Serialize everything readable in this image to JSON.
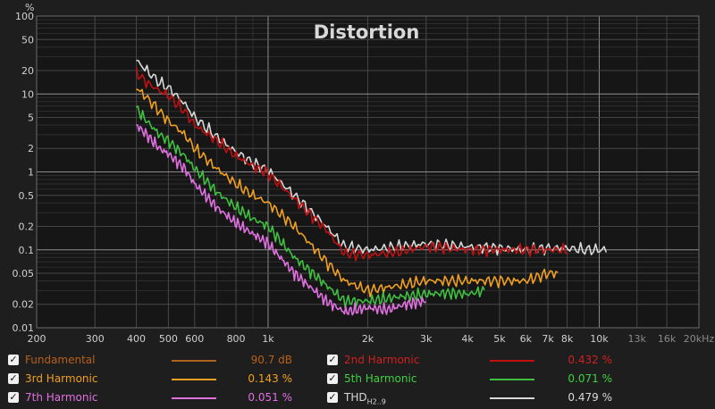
{
  "chart_data": {
    "type": "line",
    "title": "Distortion",
    "y_unit_label": "%",
    "x_scale": "log",
    "y_scale": "log",
    "xlim": [
      200,
      20000
    ],
    "ylim": [
      0.01,
      100
    ],
    "x_ticks": [
      {
        "v": 200,
        "label": "200",
        "major": false
      },
      {
        "v": 300,
        "label": "300",
        "major": false
      },
      {
        "v": 400,
        "label": "400",
        "major": false
      },
      {
        "v": 500,
        "label": "500",
        "major": false
      },
      {
        "v": 600,
        "label": "600",
        "major": false
      },
      {
        "v": 800,
        "label": "800",
        "major": false
      },
      {
        "v": 1000,
        "label": "1k",
        "major": true
      },
      {
        "v": 2000,
        "label": "2k",
        "major": false
      },
      {
        "v": 3000,
        "label": "3k",
        "major": false
      },
      {
        "v": 4000,
        "label": "4k",
        "major": false
      },
      {
        "v": 5000,
        "label": "5k",
        "major": false
      },
      {
        "v": 6000,
        "label": "6k",
        "major": false
      },
      {
        "v": 7000,
        "label": "7k",
        "major": false
      },
      {
        "v": 8000,
        "label": "8k",
        "major": false
      },
      {
        "v": 10000,
        "label": "10k",
        "major": true
      },
      {
        "v": 13000,
        "label": "13k",
        "major": false,
        "dim": true
      },
      {
        "v": 16000,
        "label": "16k",
        "major": false,
        "dim": true
      },
      {
        "v": 20000,
        "label": "20kHz",
        "major": false,
        "dim": true
      }
    ],
    "y_ticks": [
      {
        "v": 100,
        "label": "100",
        "major": true
      },
      {
        "v": 50,
        "label": "50"
      },
      {
        "v": 20,
        "label": "20"
      },
      {
        "v": 10,
        "label": "10",
        "major": true
      },
      {
        "v": 5,
        "label": "5"
      },
      {
        "v": 2,
        "label": "2"
      },
      {
        "v": 1,
        "label": "1",
        "major": true
      },
      {
        "v": 0.5,
        "label": "0.5"
      },
      {
        "v": 0.2,
        "label": "0.2"
      },
      {
        "v": 0.1,
        "label": "0.1",
        "major": true
      },
      {
        "v": 0.05,
        "label": "0.05"
      },
      {
        "v": 0.02,
        "label": "0.02"
      },
      {
        "v": 0.01,
        "label": "0.01",
        "major": true
      }
    ],
    "series": [
      {
        "name": "THD",
        "color": "#d8d8d8",
        "x": [
          400,
          430,
          470,
          500,
          560,
          600,
          700,
          800,
          900,
          1000,
          1200,
          1500,
          1700,
          2000,
          2500,
          3000,
          4000,
          5000,
          6000,
          7000,
          8000,
          9000,
          10500
        ],
        "y": [
          27,
          20,
          14,
          12,
          7.5,
          5,
          2.8,
          1.8,
          1.3,
          1.05,
          0.5,
          0.2,
          0.11,
          0.1,
          0.11,
          0.12,
          0.11,
          0.105,
          0.1,
          0.105,
          0.105,
          0.1,
          0.1
        ]
      },
      {
        "name": "2nd Harmonic",
        "color": "#c01010",
        "x": [
          400,
          430,
          470,
          500,
          560,
          600,
          700,
          800,
          900,
          1000,
          1200,
          1500,
          1700,
          2000,
          2500,
          3000,
          4000,
          5000,
          6000,
          7000,
          8000
        ],
        "y": [
          19,
          14,
          11,
          9.5,
          6,
          4,
          2.5,
          1.6,
          1.2,
          0.95,
          0.45,
          0.18,
          0.09,
          0.085,
          0.095,
          0.11,
          0.1,
          0.1,
          0.1,
          0.1,
          0.1
        ]
      },
      {
        "name": "3rd Harmonic",
        "color": "#f0a020",
        "x": [
          400,
          430,
          470,
          500,
          560,
          600,
          700,
          800,
          900,
          1000,
          1200,
          1500,
          1700,
          2000,
          2500,
          3000,
          4000,
          5000,
          6000,
          7000,
          7500
        ],
        "y": [
          12,
          9,
          6,
          4.5,
          3,
          2,
          1.1,
          0.7,
          0.5,
          0.4,
          0.2,
          0.07,
          0.04,
          0.03,
          0.035,
          0.04,
          0.04,
          0.04,
          0.04,
          0.05,
          0.05
        ]
      },
      {
        "name": "5th Harmonic",
        "color": "#40c040",
        "x": [
          400,
          430,
          470,
          500,
          560,
          600,
          700,
          800,
          900,
          1000,
          1200,
          1500,
          1700,
          2000,
          2500,
          3000,
          3500,
          4000,
          4500
        ],
        "y": [
          6.5,
          4.5,
          3,
          2.5,
          1.6,
          1.1,
          0.55,
          0.35,
          0.25,
          0.2,
          0.08,
          0.035,
          0.022,
          0.022,
          0.025,
          0.027,
          0.028,
          0.027,
          0.03
        ]
      },
      {
        "name": "7th Harmonic",
        "color": "#e070e0",
        "x": [
          400,
          430,
          470,
          500,
          560,
          600,
          700,
          800,
          900,
          1000,
          1200,
          1500,
          1700,
          2000,
          2300,
          2600,
          3000
        ],
        "y": [
          4,
          3,
          2,
          1.7,
          1.1,
          0.7,
          0.35,
          0.22,
          0.16,
          0.12,
          0.05,
          0.022,
          0.016,
          0.018,
          0.017,
          0.02,
          0.022
        ]
      }
    ]
  },
  "legend": [
    {
      "name": "Fundamental",
      "value": "90.7 dB",
      "color": "#b0621a",
      "text_color": "#b8601a",
      "checked": true,
      "sub": ""
    },
    {
      "name": "2nd Harmonic",
      "value": "0.432 %",
      "color": "#c01010",
      "text_color": "#d02020",
      "checked": true,
      "sub": ""
    },
    {
      "name": "3rd Harmonic",
      "value": "0.143 %",
      "color": "#f0a020",
      "text_color": "#f0a020",
      "checked": true,
      "sub": ""
    },
    {
      "name": "5th Harmonic",
      "value": "0.071 %",
      "color": "#40c040",
      "text_color": "#40d040",
      "checked": true,
      "sub": ""
    },
    {
      "name": "7th Harmonic",
      "value": "0.051 %",
      "color": "#e070e0",
      "text_color": "#e070e0",
      "checked": true,
      "sub": ""
    },
    {
      "name": "THD",
      "value": "0.479 %",
      "color": "#d8d8d8",
      "text_color": "#d8d8d8",
      "checked": true,
      "sub": "H2..9"
    }
  ],
  "checkmark": "✓"
}
